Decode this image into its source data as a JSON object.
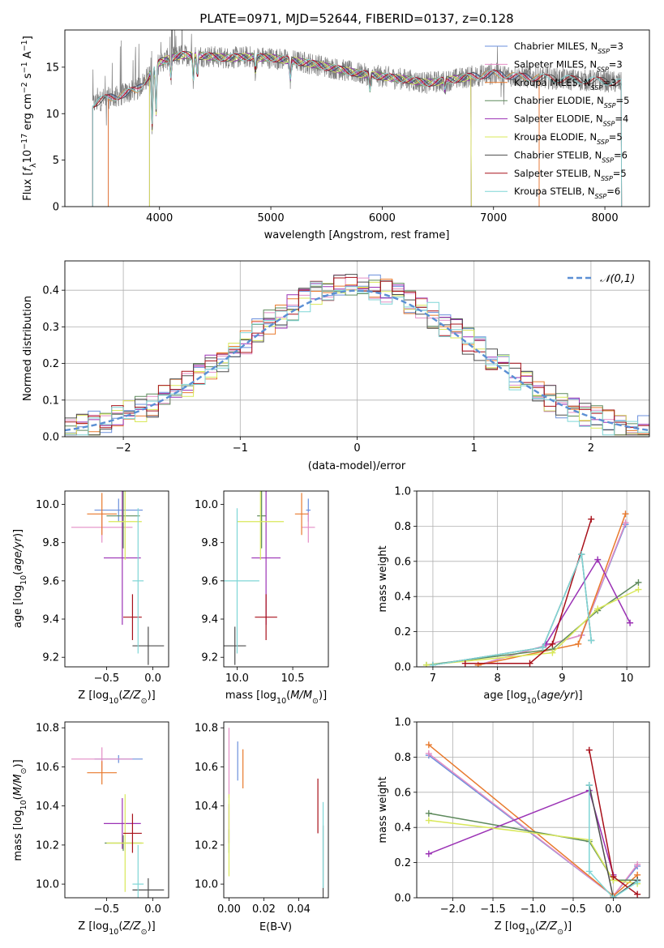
{
  "figure": {
    "title": "PLATE=0971, MJD=52644, FIBERID=0137, z=0.128"
  },
  "colors": {
    "Chabrier MILES": "#6a8fdc",
    "Salpeter MILES": "#e48dc5",
    "Kroupa MILES": "#e8792c",
    "Chabrier ELODIE": "#5e8a5c",
    "Salpeter ELODIE": "#9b32b5",
    "Kroupa ELODIE": "#d9e85a",
    "Chabrier STELIB": "#4d4d4d",
    "Salpeter STELIB": "#a8101a",
    "Kroupa STELIB": "#7fd6d6"
  },
  "chart_data": [
    {
      "id": "spectrum",
      "type": "line",
      "xlabel": "wavelength [Angstrom, rest frame]",
      "ylabel": "Flux [f_λ10^-17 erg cm^-2 s^-1 A^-1]",
      "xlim": [
        3150,
        8400
      ],
      "ylim": [
        0,
        19
      ],
      "xticks": [
        "4000",
        "5000",
        "6000",
        "7000",
        "8000"
      ],
      "yticks": [
        "0",
        "5",
        "10",
        "15"
      ],
      "grid": false,
      "legend_position": "right",
      "legend": [
        {
          "label": "Chabrier MILES, N_SSP=3",
          "text": "Chabrier MILES, N",
          "sub": "SSP",
          "n": "=3"
        },
        {
          "label": "Salpeter MILES, N_SSP=3",
          "text": "Salpeter MILES, N",
          "sub": "SSP",
          "n": "=3"
        },
        {
          "label": "Kroupa MILES, N_SSP=3",
          "text": "Kroupa MILES, N",
          "sub": "SSP",
          "n": "=3"
        },
        {
          "label": "Chabrier ELODIE, N_SSP=5",
          "text": "Chabrier ELODIE, N",
          "sub": "SSP",
          "n": "=5"
        },
        {
          "label": "Salpeter ELODIE, N_SSP=4",
          "text": "Salpeter ELODIE, N",
          "sub": "SSP",
          "n": "=4"
        },
        {
          "label": "Kroupa ELODIE, N_SSP=5",
          "text": "Kroupa ELODIE, N",
          "sub": "SSP",
          "n": "=5"
        },
        {
          "label": "Chabrier STELIB, N_SSP=6",
          "text": "Chabrier STELIB, N",
          "sub": "SSP",
          "n": "=6"
        },
        {
          "label": "Salpeter STELIB, N_SSP=5",
          "text": "Salpeter STELIB, N",
          "sub": "SSP",
          "n": "=5"
        },
        {
          "label": "Kroupa STELIB, N_SSP=6",
          "text": "Kroupa STELIB, N",
          "sub": "SSP",
          "n": "=6"
        }
      ],
      "continuum": [
        [
          3400,
          11.0
        ],
        [
          3500,
          11.6
        ],
        [
          3600,
          11.8
        ],
        [
          3700,
          12.2
        ],
        [
          3800,
          12.6
        ],
        [
          3900,
          14.0
        ],
        [
          4000,
          15.5
        ],
        [
          4100,
          16.0
        ],
        [
          4200,
          16.3
        ],
        [
          4400,
          16.2
        ],
        [
          4600,
          16.0
        ],
        [
          4800,
          16.1
        ],
        [
          5000,
          16.0
        ],
        [
          5200,
          15.7
        ],
        [
          5400,
          15.3
        ],
        [
          5600,
          14.8
        ],
        [
          5800,
          14.3
        ],
        [
          6000,
          14.0
        ],
        [
          6200,
          13.7
        ],
        [
          6400,
          13.3
        ],
        [
          6600,
          13.6
        ],
        [
          6800,
          14.0
        ],
        [
          7000,
          14.3
        ],
        [
          7200,
          14.0
        ],
        [
          7500,
          13.8
        ],
        [
          7800,
          13.6
        ],
        [
          8000,
          13.5
        ],
        [
          8150,
          13.3
        ]
      ],
      "model_ranges": [
        {
          "series": "Chabrier MILES",
          "start": 3540,
          "end": 7410
        },
        {
          "series": "Salpeter MILES",
          "start": 3540,
          "end": 7410
        },
        {
          "series": "Kroupa MILES",
          "start": 3540,
          "end": 7410
        },
        {
          "series": "Chabrier ELODIE",
          "start": 3910,
          "end": 6800
        },
        {
          "series": "Salpeter ELODIE",
          "start": 3910,
          "end": 6800
        },
        {
          "series": "Kroupa ELODIE",
          "start": 3910,
          "end": 6800
        },
        {
          "series": "Chabrier STELIB",
          "start": 3400,
          "end": 8150
        },
        {
          "series": "Salpeter STELIB",
          "start": 3400,
          "end": 8150
        },
        {
          "series": "Kroupa STELIB",
          "start": 3400,
          "end": 8150
        }
      ]
    },
    {
      "id": "residuals",
      "type": "histogram",
      "xlabel": "(data-model)/error",
      "ylabel": "Normed distribution",
      "xlim": [
        -2.5,
        2.5
      ],
      "ylim": [
        0,
        0.48
      ],
      "xticks": [
        -2,
        -1,
        0,
        1,
        2
      ],
      "xtick_labels": [
        "−2",
        "−1",
        "0",
        "1",
        "2"
      ],
      "yticks": [
        0,
        0.1,
        0.2,
        0.3,
        0.4
      ],
      "ytick_labels": [
        "0.0",
        "0.1",
        "0.2",
        "0.3",
        "0.4"
      ],
      "grid": true,
      "bin_width": 0.1,
      "legend": [
        {
          "label": "𝒩(0,1)",
          "style": "dashed",
          "color": "#5b8fd4"
        }
      ],
      "series_order": [
        "Chabrier MILES",
        "Salpeter MILES",
        "Kroupa MILES",
        "Chabrier ELODIE",
        "Salpeter ELODIE",
        "Kroupa ELODIE",
        "Chabrier STELIB",
        "Salpeter STELIB",
        "Kroupa STELIB"
      ]
    },
    {
      "id": "age-vs-Z",
      "type": "errorbar",
      "xlabel": "Z [log10(Z/Z⊙)]",
      "ylabel": "age [log10(age/yr)]",
      "xlim": [
        -0.95,
        0.17
      ],
      "ylim": [
        9.15,
        10.07
      ],
      "xticks": [
        -0.5,
        0.0
      ],
      "xtick_labels": [
        "−0.5",
        "0.0"
      ],
      "yticks": [
        9.2,
        9.4,
        9.6,
        9.8,
        10.0
      ],
      "ytick_labels": [
        "9.2",
        "9.4",
        "9.6",
        "9.8",
        "10.0"
      ],
      "points": [
        {
          "series": "Chabrier MILES",
          "x": -0.37,
          "xerr": 0.26,
          "y": 9.97,
          "yerr": 0.06
        },
        {
          "series": "Salpeter MILES",
          "x": -0.55,
          "xerr": 0.33,
          "y": 9.88,
          "yerr": 0.08
        },
        {
          "series": "Kroupa MILES",
          "x": -0.55,
          "xerr": 0.16,
          "y": 9.95,
          "yerr": 0.11
        },
        {
          "series": "Chabrier ELODIE",
          "x": -0.32,
          "xerr": 0.18,
          "y": 9.94,
          "yerr": 0.17
        },
        {
          "series": "Salpeter ELODIE",
          "x": -0.33,
          "xerr": 0.2,
          "y": 9.72,
          "yerr": 0.35
        },
        {
          "series": "Kroupa ELODIE",
          "x": -0.3,
          "xerr": 0.18,
          "y": 9.91,
          "yerr": 0.2
        },
        {
          "series": "Chabrier STELIB",
          "x": -0.05,
          "xerr": 0.17,
          "y": 9.26,
          "yerr": 0.1
        },
        {
          "series": "Salpeter STELIB",
          "x": -0.22,
          "xerr": 0.1,
          "y": 9.41,
          "yerr": 0.12
        },
        {
          "series": "Kroupa STELIB",
          "x": -0.16,
          "xerr": 0.06,
          "y": 9.6,
          "yerr": 0.38
        }
      ]
    },
    {
      "id": "age-vs-mass",
      "type": "errorbar",
      "xlabel": "mass [log10(M/M⊙)]",
      "ylabel": "",
      "xlim": [
        9.88,
        10.82
      ],
      "ylim": [
        9.15,
        10.07
      ],
      "xticks": [
        10.0,
        10.5
      ],
      "xtick_labels": [
        "10.0",
        "10.5"
      ],
      "yticks": [
        9.2,
        9.4,
        9.6,
        9.8,
        10.0
      ],
      "ytick_labels": [
        "9.2",
        "9.4",
        "9.6",
        "9.8",
        "10.0"
      ],
      "points": [
        {
          "series": "Chabrier MILES",
          "x": 10.64,
          "xerr": 0.02,
          "y": 9.97,
          "yerr": 0.06
        },
        {
          "series": "Salpeter MILES",
          "x": 10.64,
          "xerr": 0.06,
          "y": 9.88,
          "yerr": 0.08
        },
        {
          "series": "Kroupa MILES",
          "x": 10.58,
          "xerr": 0.06,
          "y": 9.95,
          "yerr": 0.11
        },
        {
          "series": "Chabrier ELODIE",
          "x": 10.22,
          "xerr": 0.04,
          "y": 9.94,
          "yerr": 0.17
        },
        {
          "series": "Salpeter ELODIE",
          "x": 10.26,
          "xerr": 0.13,
          "y": 9.72,
          "yerr": 0.35
        },
        {
          "series": "Kroupa ELODIE",
          "x": 10.21,
          "xerr": 0.21,
          "y": 9.91,
          "yerr": 0.2
        },
        {
          "series": "Chabrier STELIB",
          "x": 9.98,
          "xerr": 0.1,
          "y": 9.26,
          "yerr": 0.1
        },
        {
          "series": "Salpeter STELIB",
          "x": 10.26,
          "xerr": 0.1,
          "y": 9.41,
          "yerr": 0.12
        },
        {
          "series": "Kroupa STELIB",
          "x": 10.0,
          "xerr": 0.2,
          "y": 9.6,
          "yerr": 0.38
        }
      ]
    },
    {
      "id": "massweight-vs-age",
      "type": "line",
      "xlabel": "age [log10(age/yr)]",
      "ylabel": "mass weight",
      "xlim": [
        6.75,
        10.35
      ],
      "ylim": [
        0,
        1
      ],
      "xticks": [
        7,
        8,
        9,
        10
      ],
      "xtick_labels": [
        "7",
        "8",
        "9",
        "10"
      ],
      "yticks": [
        0,
        0.2,
        0.4,
        0.6,
        0.8,
        1.0
      ],
      "ytick_labels": [
        "0.0",
        "0.2",
        "0.4",
        "0.6",
        "0.8",
        "1.0"
      ],
      "grid": true,
      "series": [
        {
          "name": "Chabrier MILES",
          "x": [
            7.7,
            9.3,
            9.98
          ],
          "y": [
            0.01,
            0.18,
            0.81
          ]
        },
        {
          "name": "Salpeter MILES",
          "x": [
            7.7,
            9.3,
            9.98
          ],
          "y": [
            0.01,
            0.18,
            0.82
          ]
        },
        {
          "name": "Kroupa MILES",
          "x": [
            7.7,
            9.25,
            9.98
          ],
          "y": [
            0.01,
            0.13,
            0.87
          ]
        },
        {
          "name": "Chabrier ELODIE",
          "x": [
            6.9,
            8.85,
            9.55,
            10.18
          ],
          "y": [
            0.01,
            0.1,
            0.32,
            0.48
          ]
        },
        {
          "name": "Salpeter ELODIE",
          "x": [
            8.75,
            9.55,
            10.05
          ],
          "y": [
            0.13,
            0.61,
            0.25
          ]
        },
        {
          "name": "Kroupa ELODIE",
          "x": [
            6.9,
            8.85,
            9.55,
            10.18
          ],
          "y": [
            0.01,
            0.08,
            0.33,
            0.44
          ]
        },
        {
          "name": "Chabrier STELIB",
          "x": [
            7.0,
            8.7,
            9.3,
            9.45
          ],
          "y": [
            0.01,
            0.11,
            0.64,
            0.15
          ]
        },
        {
          "name": "Salpeter STELIB",
          "x": [
            7.5,
            8.5,
            8.85,
            9.45
          ],
          "y": [
            0.02,
            0.02,
            0.13,
            0.84
          ]
        },
        {
          "name": "Kroupa STELIB",
          "x": [
            7.0,
            8.7,
            9.3,
            9.45
          ],
          "y": [
            0.01,
            0.11,
            0.64,
            0.15
          ]
        }
      ]
    },
    {
      "id": "mass-vs-Z",
      "type": "errorbar",
      "xlabel": "Z [log10(Z/Z⊙)]",
      "ylabel": "mass [log10(M/M⊙)]",
      "xlim": [
        -0.95,
        0.17
      ],
      "ylim": [
        9.93,
        10.83
      ],
      "xticks": [
        -0.5,
        0.0
      ],
      "xtick_labels": [
        "−0.5",
        "0.0"
      ],
      "yticks": [
        10.0,
        10.2,
        10.4,
        10.6,
        10.8
      ],
      "ytick_labels": [
        "10.0",
        "10.2",
        "10.4",
        "10.6",
        "10.8"
      ],
      "points": [
        {
          "series": "Chabrier MILES",
          "x": -0.37,
          "xerr": 0.26,
          "y": 10.64,
          "yerr": 0.02
        },
        {
          "series": "Salpeter MILES",
          "x": -0.55,
          "xerr": 0.33,
          "y": 10.64,
          "yerr": 0.06
        },
        {
          "series": "Kroupa MILES",
          "x": -0.55,
          "xerr": 0.16,
          "y": 10.57,
          "yerr": 0.06
        },
        {
          "series": "Chabrier ELODIE",
          "x": -0.32,
          "xerr": 0.2,
          "y": 10.21,
          "yerr": 0.04
        },
        {
          "series": "Salpeter ELODIE",
          "x": -0.33,
          "xerr": 0.2,
          "y": 10.31,
          "yerr": 0.13
        },
        {
          "series": "Kroupa ELODIE",
          "x": -0.3,
          "xerr": 0.2,
          "y": 10.21,
          "yerr": 0.25
        },
        {
          "series": "Chabrier STELIB",
          "x": -0.05,
          "xerr": 0.17,
          "y": 9.97,
          "yerr": 0.06
        },
        {
          "series": "Salpeter STELIB",
          "x": -0.22,
          "xerr": 0.1,
          "y": 10.26,
          "yerr": 0.1
        },
        {
          "series": "Kroupa STELIB",
          "x": -0.16,
          "xerr": 0.06,
          "y": 10.0,
          "yerr": 0.2
        }
      ]
    },
    {
      "id": "mass-vs-EBV",
      "type": "errorbar",
      "xlabel": "E(B-V)",
      "ylabel": "",
      "xlim": [
        -0.003,
        0.057
      ],
      "ylim": [
        9.93,
        10.83
      ],
      "xticks": [
        0.0,
        0.02,
        0.04
      ],
      "xtick_labels": [
        "0.00",
        "0.02",
        "0.04"
      ],
      "yticks": [
        10.0,
        10.2,
        10.4,
        10.6,
        10.8
      ],
      "ytick_labels": [
        "10.0",
        "10.2",
        "10.4",
        "10.6",
        "10.8"
      ],
      "points": [
        {
          "series": "Chabrier MILES",
          "x": 0.005,
          "y": 10.63,
          "yerr": 0.1
        },
        {
          "series": "Salpeter MILES",
          "x": 0.0,
          "y": 10.62,
          "yerr": 0.18
        },
        {
          "series": "Kroupa MILES",
          "x": 0.008,
          "y": 10.59,
          "yerr": 0.1
        },
        {
          "series": "Chabrier ELODIE",
          "x": 0.0,
          "y": 10.22,
          "yerr": 0.06
        },
        {
          "series": "Salpeter ELODIE",
          "x": 0.0,
          "y": 10.31,
          "yerr": 0.1
        },
        {
          "series": "Kroupa ELODIE",
          "x": 0.0,
          "y": 10.25,
          "yerr": 0.21
        },
        {
          "series": "Chabrier STELIB",
          "x": 0.054,
          "y": 10.1,
          "yerr": 0.2
        },
        {
          "series": "Salpeter STELIB",
          "x": 0.051,
          "y": 10.4,
          "yerr": 0.14
        },
        {
          "series": "Kroupa STELIB",
          "x": 0.054,
          "y": 10.2,
          "yerr": 0.22
        }
      ]
    },
    {
      "id": "massweight-vs-Z",
      "type": "line",
      "xlabel": "Z [log10(Z/Z⊙)]",
      "ylabel": "mass weight",
      "xlim": [
        -2.45,
        0.45
      ],
      "ylim": [
        0,
        1
      ],
      "xticks": [
        -2.0,
        -1.5,
        -1.0,
        -0.5,
        0.0
      ],
      "xtick_labels": [
        "−2.0",
        "−1.5",
        "−1.0",
        "−0.5",
        "0.0"
      ],
      "yticks": [
        0,
        0.2,
        0.4,
        0.6,
        0.8,
        1.0
      ],
      "ytick_labels": [
        "0.0",
        "0.2",
        "0.4",
        "0.6",
        "0.8",
        "1.0"
      ],
      "grid": true,
      "series": [
        {
          "name": "Chabrier MILES",
          "x": [
            -2.3,
            0.0,
            0.3
          ],
          "y": [
            0.81,
            0.01,
            0.18
          ]
        },
        {
          "name": "Salpeter MILES",
          "x": [
            -2.3,
            0.0,
            0.3
          ],
          "y": [
            0.82,
            0.01,
            0.19
          ]
        },
        {
          "name": "Kroupa MILES",
          "x": [
            -2.3,
            0.0,
            0.3
          ],
          "y": [
            0.87,
            0.01,
            0.13
          ]
        },
        {
          "name": "Chabrier ELODIE",
          "x": [
            -2.3,
            -0.3,
            0.0,
            0.3
          ],
          "y": [
            0.48,
            0.32,
            0.1,
            0.1
          ]
        },
        {
          "name": "Salpeter ELODIE",
          "x": [
            -2.3,
            -0.3,
            0.0
          ],
          "y": [
            0.25,
            0.61,
            0.13
          ]
        },
        {
          "name": "Kroupa ELODIE",
          "x": [
            -2.3,
            -0.3,
            0.0,
            0.3
          ],
          "y": [
            0.44,
            0.33,
            0.1,
            0.08
          ]
        },
        {
          "name": "Chabrier STELIB",
          "x": [
            -0.3,
            0.0,
            0.3
          ],
          "y": [
            0.64,
            0.0,
            0.1
          ]
        },
        {
          "name": "Salpeter STELIB",
          "x": [
            -0.3,
            0.0,
            0.3
          ],
          "y": [
            0.84,
            0.12,
            0.02
          ]
        },
        {
          "name": "Kroupa STELIB",
          "x": [
            -0.3,
            -0.3,
            0.0,
            0.3
          ],
          "y": [
            0.64,
            0.15,
            0.0,
            0.09
          ]
        }
      ]
    }
  ]
}
